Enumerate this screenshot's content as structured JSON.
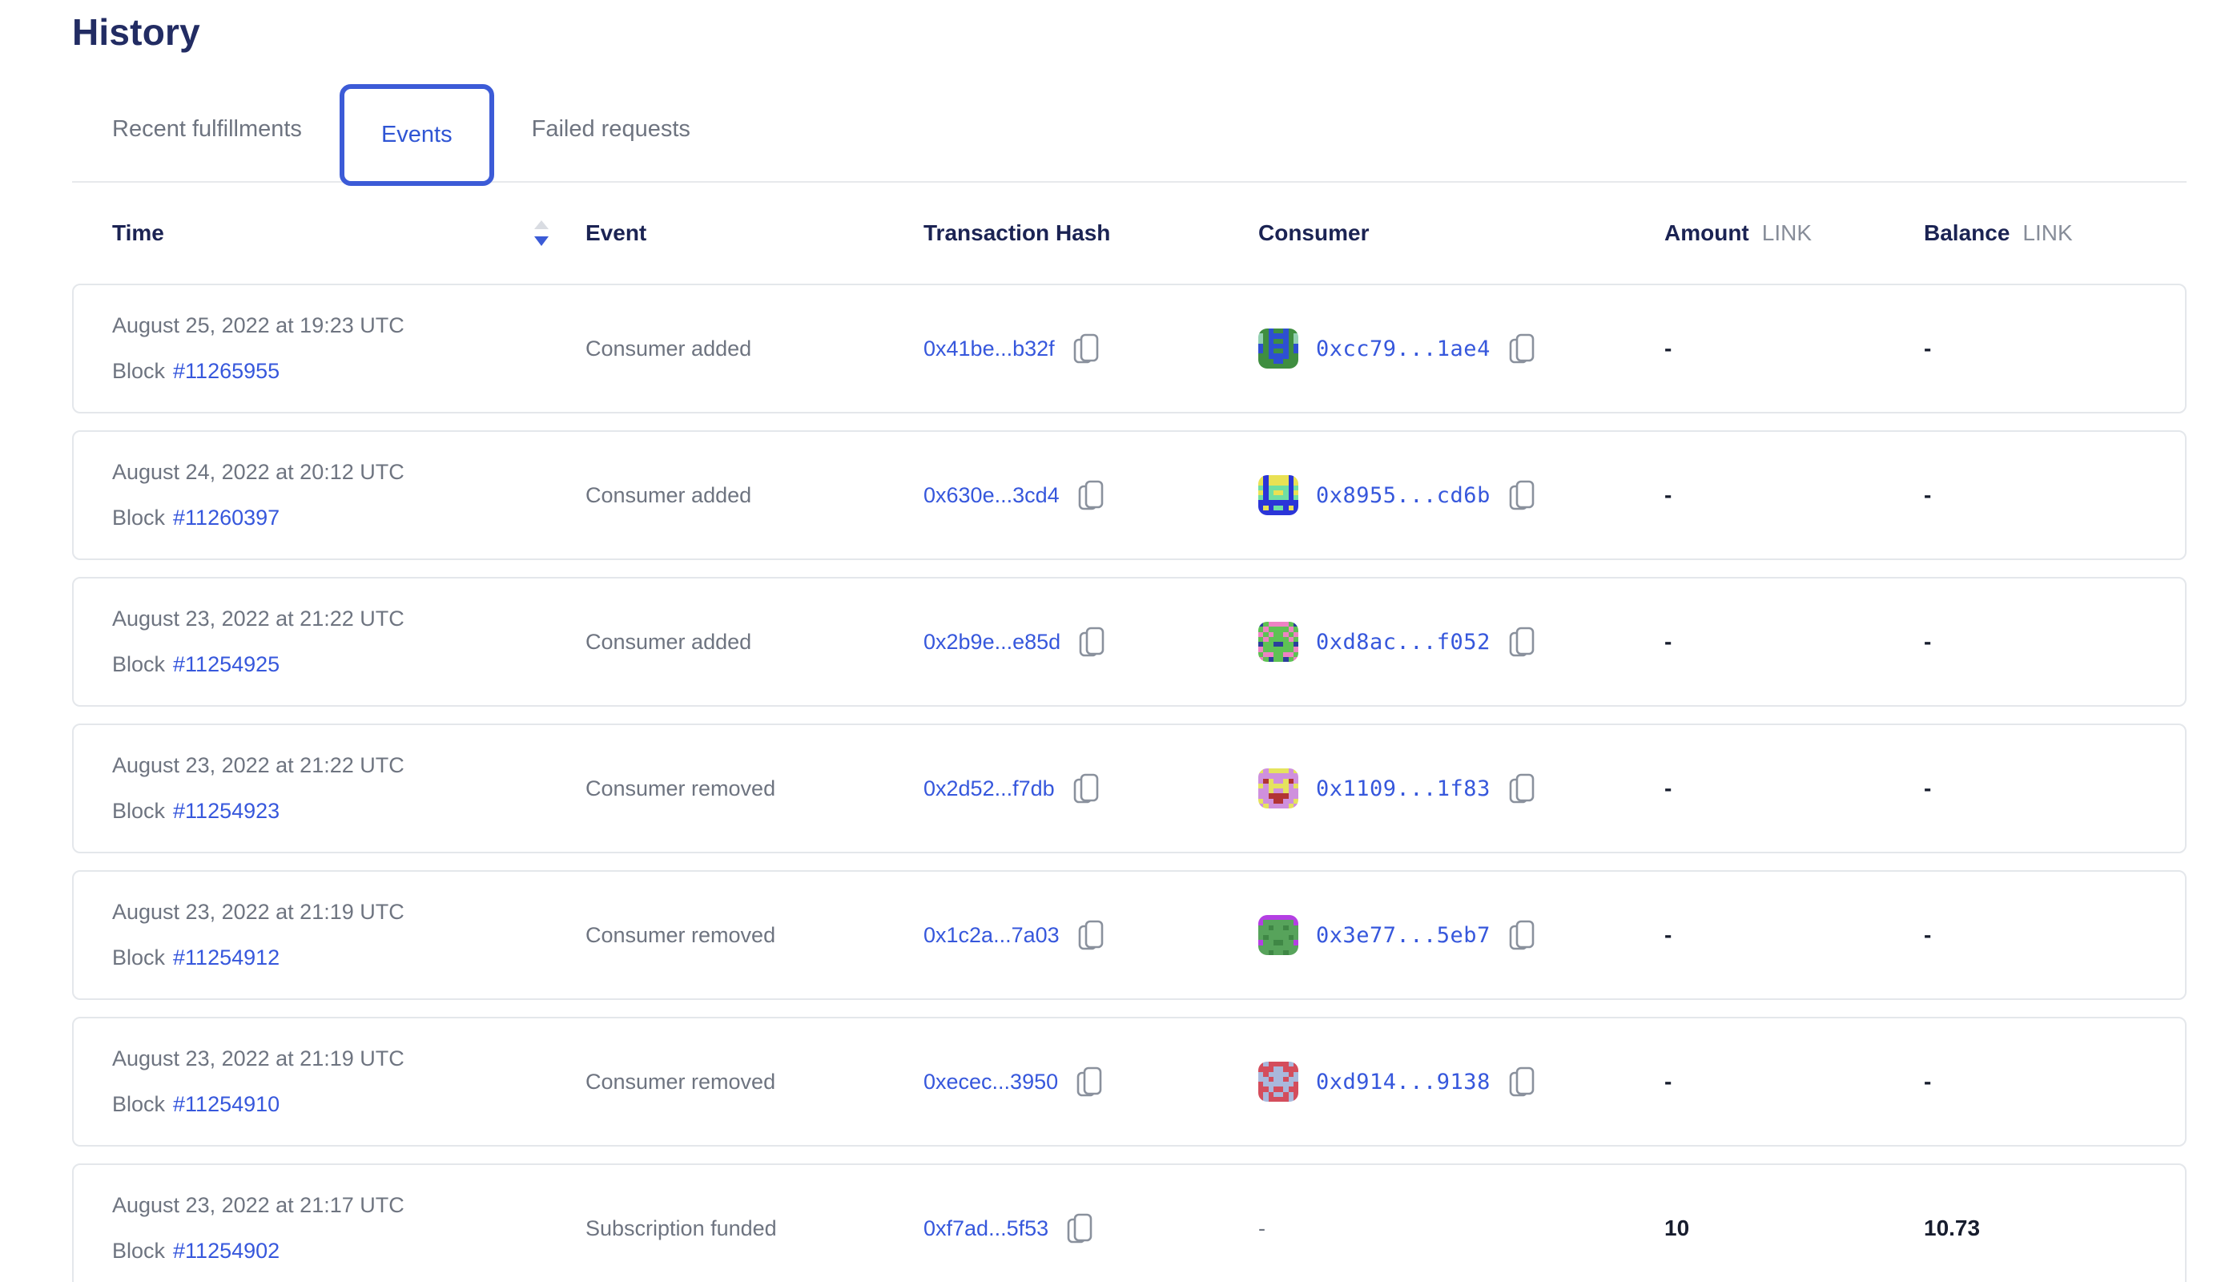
{
  "page": {
    "title": "History"
  },
  "tabs": [
    {
      "label": "Recent fulfillments",
      "active": false
    },
    {
      "label": "Events",
      "active": true
    },
    {
      "label": "Failed requests",
      "active": false
    }
  ],
  "sort": {
    "column": "Time",
    "direction": "descending"
  },
  "colors": {
    "heading_navy": "#222c63",
    "header_text": "#1b2353",
    "muted_text": "#6e7480",
    "link_blue": "#3657dc",
    "active_tab_text": "#2f55d4",
    "active_tab_border": "#3c5bd7",
    "unit_gray": "#878d99",
    "card_border": "#e4e7eb",
    "value_text": "#171d2e",
    "sort_inactive": "#d9dce2",
    "sort_active": "#3b5bd6"
  },
  "table": {
    "headers": {
      "time": "Time",
      "event": "Event",
      "tx": "Transaction Hash",
      "consumer": "Consumer",
      "amount": "Amount",
      "balance": "Balance",
      "unit": "LINK"
    },
    "rows": [
      {
        "date": "August 25, 2022 at 19:23 UTC",
        "block_label": "Block",
        "block": "#11265955",
        "event": "Consumer added",
        "tx_hash": "0x41be...b32f",
        "consumer": "0xcc79...1ae4",
        "amount": "-",
        "balance": "-",
        "avatar": {
          "palette": {
            "g": "#3f8e40",
            "b": "#2e4fd2",
            "t": "#93d0b2"
          },
          "pixels": [
            "ggbggbgg",
            "tgbbbbgt",
            "tgbggbgt",
            "bgbbbbgb",
            "bgbggbgb",
            "ggbbbbgg",
            "gggbbggg",
            "gggggggg"
          ]
        }
      },
      {
        "date": "August 24, 2022 at 20:12 UTC",
        "block_label": "Block",
        "block": "#11260397",
        "event": "Consumer added",
        "tx_hash": "0x630e...3cd4",
        "consumer": "0x8955...cd6b",
        "amount": "-",
        "balance": "-",
        "avatar": {
          "palette": {
            "b": "#2b35d8",
            "y": "#e9e154",
            "g": "#70dfa2"
          },
          "pixels": [
            "ybyyyyby",
            "ybyyyyby",
            "gbggggbg",
            "ybgyygby",
            "gbggggbg",
            "bbbbbbbb",
            "bybggbyb",
            "bbbbbbbb"
          ]
        }
      },
      {
        "date": "August 23, 2022 at 21:22 UTC",
        "block_label": "Block",
        "block": "#11254925",
        "event": "Consumer added",
        "tx_hash": "0x2b9e...e85d",
        "consumer": "0xd8ac...f052",
        "amount": "-",
        "balance": "-",
        "avatar": {
          "palette": {
            "g": "#5ec254",
            "p": "#ee82c4",
            "n": "#2b3f9b"
          },
          "pixels": [
            "ngppppgn",
            "gpggggpg",
            "pgpggpgp",
            "gpggggpg",
            "nggnnggn",
            "pggggggp",
            "gppggppg",
            "pgnggngp"
          ]
        }
      },
      {
        "date": "August 23, 2022 at 21:22 UTC",
        "block_label": "Block",
        "block": "#11254923",
        "event": "Consumer removed",
        "tx_hash": "0x2d52...f7db",
        "consumer": "0x1109...1f83",
        "amount": "-",
        "balance": "-",
        "avatar": {
          "palette": {
            "l": "#cf90dd",
            "y": "#e5e35e",
            "r": "#b23434"
          },
          "pixels": [
            "ylyyyyly",
            "llllllll",
            "lryllyrl",
            "ylyyyyly",
            "llyllyll",
            "llrrrrll",
            "yllrrlly",
            "lyllllyl"
          ]
        }
      },
      {
        "date": "August 23, 2022 at 21:19 UTC",
        "block_label": "Block",
        "block": "#11254912",
        "event": "Consumer removed",
        "tx_hash": "0x1c2a...7a03",
        "consumer": "0x3e77...5eb7",
        "amount": "-",
        "balance": "-",
        "avatar": {
          "palette": {
            "g": "#57a35b",
            "d": "#3f8745",
            "p": "#b43fe3"
          },
          "pixels": [
            "pppppppp",
            "pggggggp",
            "ggdggdgg",
            "gggggggg",
            "gdggggdg",
            "pggddggp",
            "gggggggg",
            "ggdggdgg"
          ]
        }
      },
      {
        "date": "August 23, 2022 at 21:19 UTC",
        "block_label": "Block",
        "block": "#11254910",
        "event": "Consumer removed",
        "tx_hash": "0xecec...3950",
        "consumer": "0xd914...9138",
        "amount": "-",
        "balance": "-",
        "avatar": {
          "palette": {
            "r": "#d44d5c",
            "l": "#a9b8dc"
          },
          "pixels": [
            "rlrrrrlr",
            "rrrllrrr",
            "lrllllrl",
            "llrllrll",
            "rllllllr",
            "rrlrrlrr",
            "rlrllrlr",
            "rlrrrrlr"
          ]
        }
      },
      {
        "date": "August 23, 2022 at 21:17 UTC",
        "block_label": "Block",
        "block": "#11254902",
        "event": "Subscription funded",
        "tx_hash": "0xf7ad...5f53",
        "consumer": "-",
        "amount": "10",
        "balance": "10.73",
        "avatar": null
      }
    ]
  }
}
